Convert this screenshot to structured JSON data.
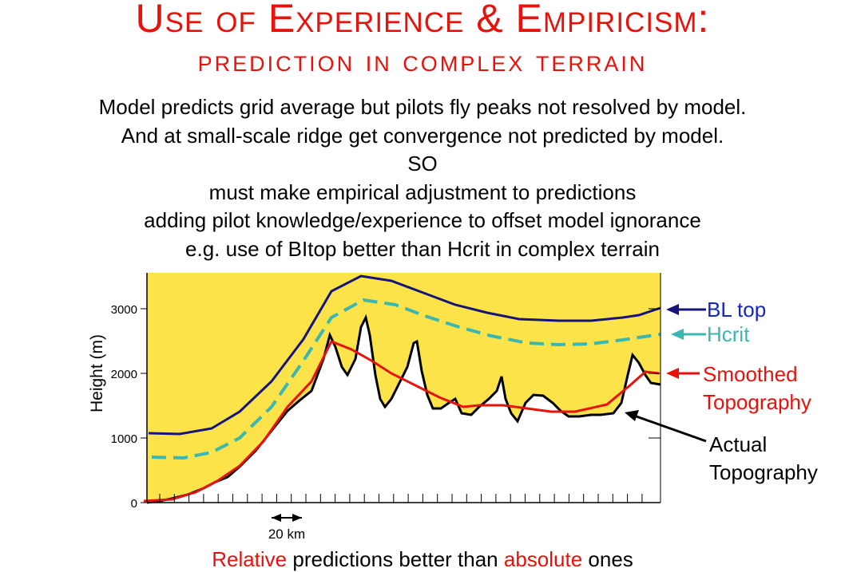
{
  "title": "Use of Experience & Empiricism:",
  "subtitle": "prediction in complex terrain",
  "body_lines": [
    "Model predicts grid average but pilots fly peaks not resolved by model.",
    "And at small-scale ridge get convergence not predicted by model.",
    "SO",
    "must make empirical adjustment to predictions",
    "adding pilot knowledge/experience to offset model ignorance",
    "e.g. use of BItop better than Hcrit in complex terrain"
  ],
  "diagram": {
    "y_axis_label": "Height (m)",
    "y_ticks": [
      "0",
      "1000",
      "2000",
      "3000"
    ],
    "scale_label": "20 km",
    "labels": {
      "bl_top": "BL top",
      "hcrit": "Hcrit",
      "smoothed_1": "Smoothed",
      "smoothed_2": "Topography",
      "actual_1": "Actual",
      "actual_2": "Topography"
    },
    "colors": {
      "fill": "#fde34a",
      "bl_top": "#14147a",
      "hcrit": "#3ab7b0",
      "smoothed": "#e8120c",
      "actual": "#000000"
    }
  },
  "bottom": {
    "w1": "Relative",
    "w2": " predictions better than ",
    "w3": "absolute",
    "w4": " ones"
  }
}
